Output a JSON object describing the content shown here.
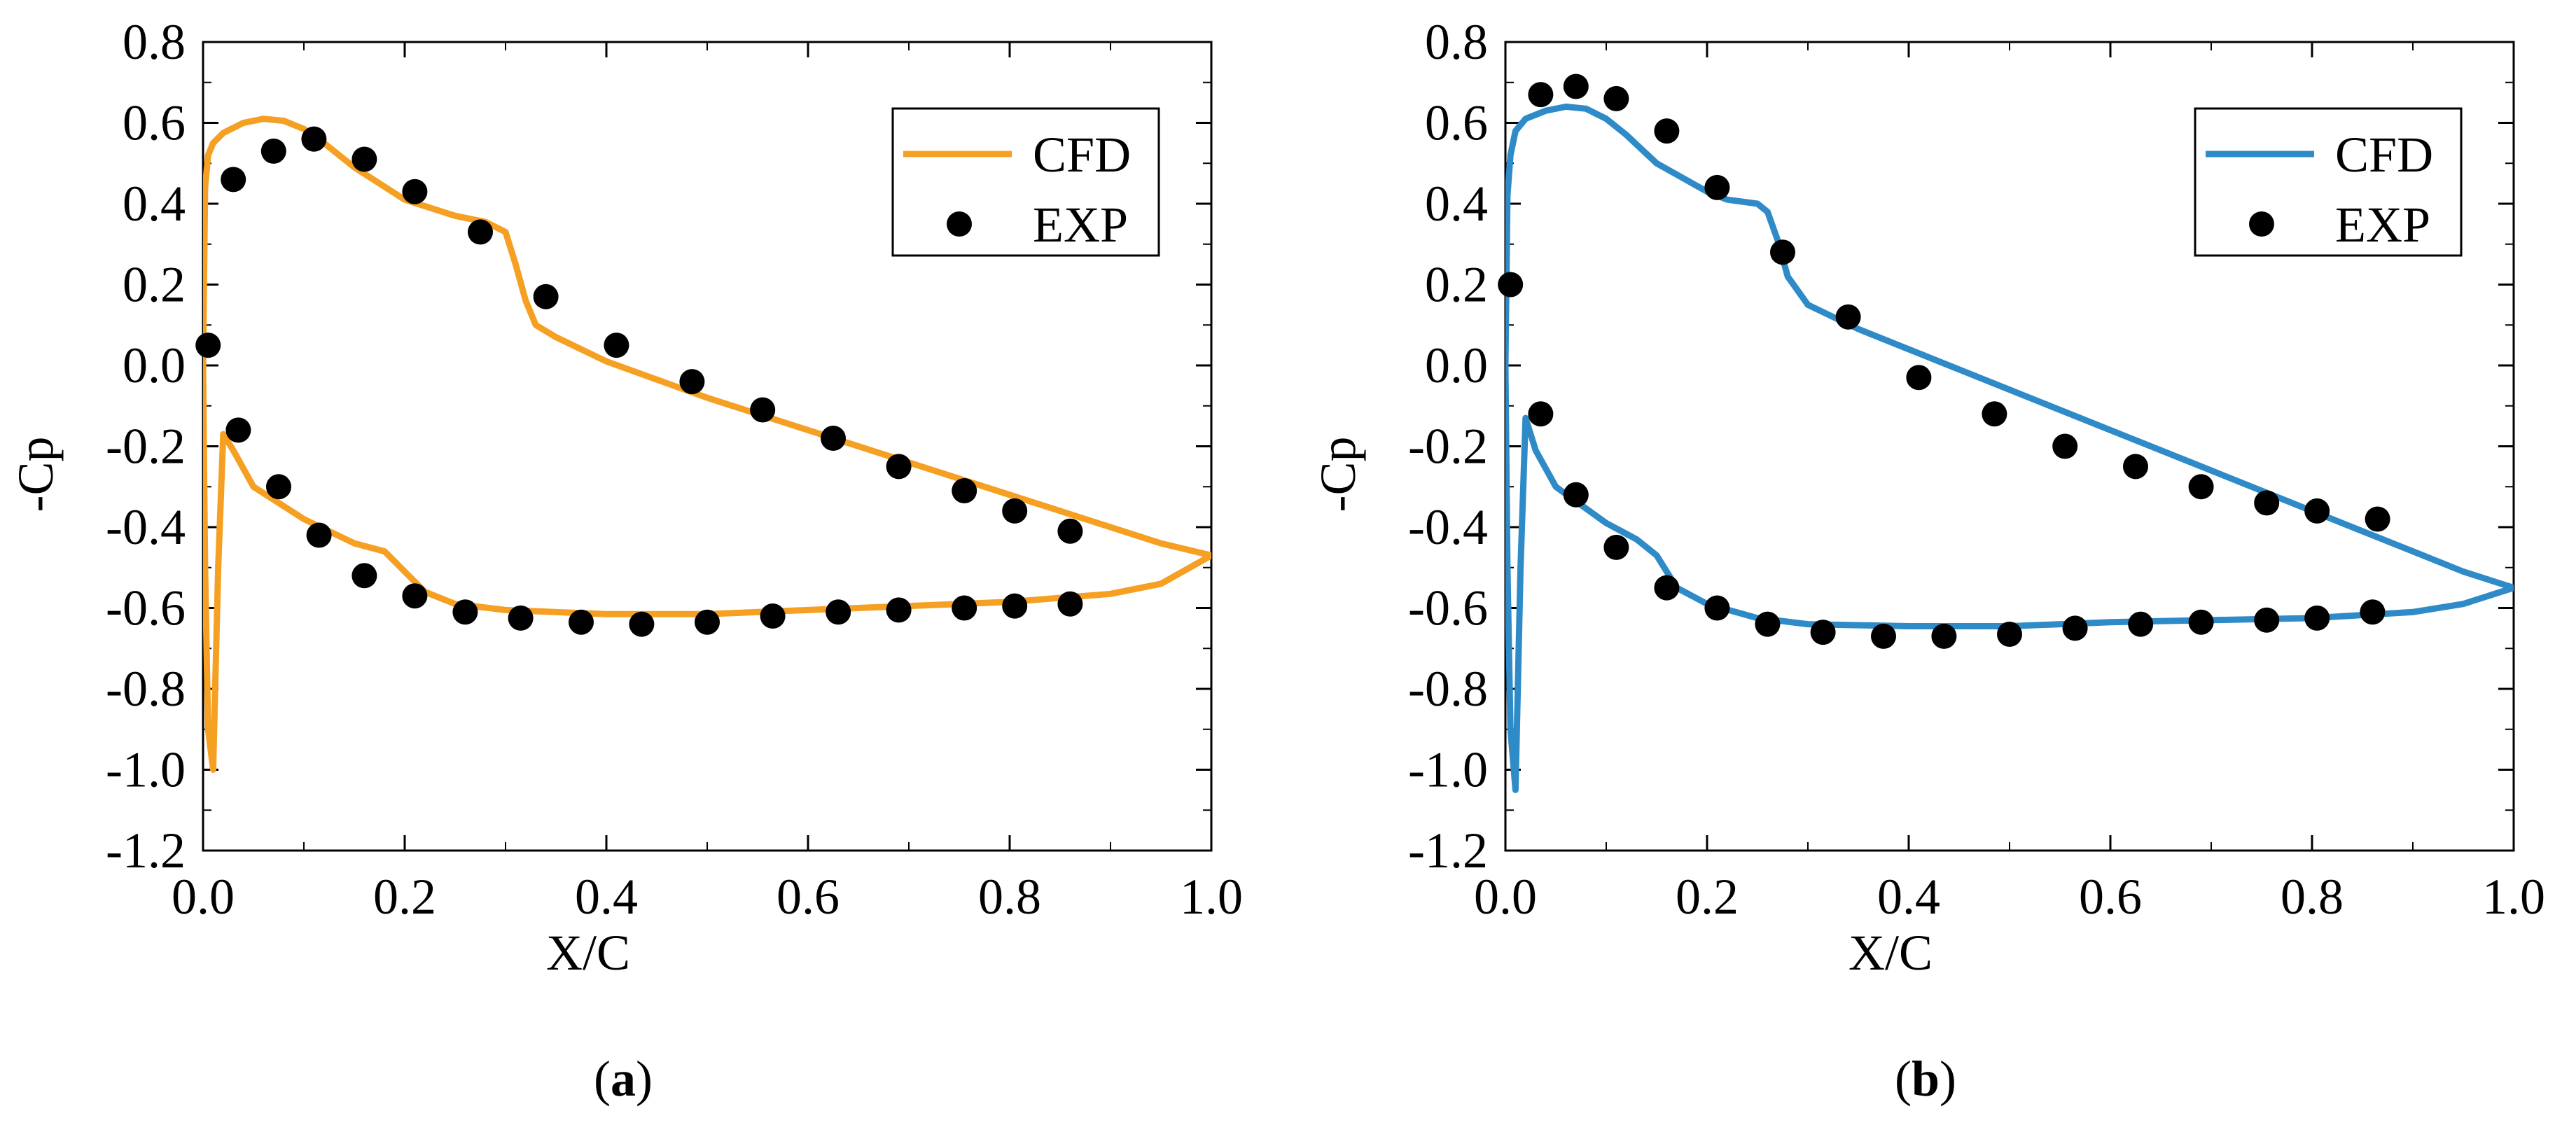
{
  "chart_data": [
    {
      "type": "line",
      "panel_label": "a",
      "xlabel": "X/C",
      "ylabel": "-Cp",
      "xlim": [
        0.0,
        1.0
      ],
      "ylim": [
        -1.2,
        0.8
      ],
      "xticks": [
        "0.0",
        "0.2",
        "0.4",
        "0.6",
        "0.8",
        "1.0"
      ],
      "yticks": [
        "0.8",
        "0.6",
        "0.4",
        "0.2",
        "0.0",
        "-0.2",
        "-0.4",
        "-0.6",
        "-0.8",
        "-1.0",
        "-1.2"
      ],
      "legend_position": "top-right",
      "series": [
        {
          "name": "CFD",
          "kind": "line",
          "color": "#F5A023",
          "x": [
            1.0,
            0.95,
            0.9,
            0.85,
            0.8,
            0.7,
            0.6,
            0.5,
            0.4,
            0.35,
            0.33,
            0.32,
            0.31,
            0.3,
            0.28,
            0.25,
            0.2,
            0.15,
            0.12,
            0.1,
            0.08,
            0.06,
            0.04,
            0.02,
            0.01,
            0.005,
            0.002,
            0.0,
            0.002,
            0.005,
            0.01,
            0.015,
            0.02,
            0.03,
            0.05,
            0.1,
            0.15,
            0.18,
            0.2,
            0.22,
            0.25,
            0.3,
            0.4,
            0.5,
            0.6,
            0.7,
            0.8,
            0.9,
            0.95,
            1.0
          ],
          "y": [
            -0.47,
            -0.44,
            -0.4,
            -0.36,
            -0.32,
            -0.24,
            -0.16,
            -0.08,
            0.01,
            0.07,
            0.1,
            0.16,
            0.25,
            0.33,
            0.355,
            0.37,
            0.41,
            0.49,
            0.55,
            0.585,
            0.605,
            0.61,
            0.6,
            0.575,
            0.55,
            0.52,
            0.44,
            0.0,
            -0.5,
            -0.9,
            -1.0,
            -0.5,
            -0.17,
            -0.21,
            -0.3,
            -0.38,
            -0.44,
            -0.46,
            -0.51,
            -0.56,
            -0.59,
            -0.605,
            -0.615,
            -0.615,
            -0.605,
            -0.595,
            -0.585,
            -0.565,
            -0.54,
            -0.47
          ]
        },
        {
          "name": "EXP",
          "kind": "scatter",
          "color": "#000000",
          "x": [
            0.005,
            0.03,
            0.07,
            0.11,
            0.16,
            0.21,
            0.275,
            0.34,
            0.41,
            0.485,
            0.555,
            0.625,
            0.69,
            0.755,
            0.805,
            0.86,
            0.035,
            0.075,
            0.115,
            0.16,
            0.21,
            0.26,
            0.315,
            0.375,
            0.435,
            0.5,
            0.565,
            0.63,
            0.69,
            0.755,
            0.805,
            0.86
          ],
          "y": [
            0.05,
            0.46,
            0.53,
            0.56,
            0.51,
            0.43,
            0.33,
            0.17,
            0.05,
            -0.04,
            -0.11,
            -0.18,
            -0.25,
            -0.31,
            -0.36,
            -0.41,
            -0.16,
            -0.3,
            -0.42,
            -0.52,
            -0.57,
            -0.61,
            -0.625,
            -0.635,
            -0.64,
            -0.635,
            -0.62,
            -0.61,
            -0.605,
            -0.6,
            -0.595,
            -0.59
          ]
        }
      ]
    },
    {
      "type": "line",
      "panel_label": "b",
      "xlabel": "X/C",
      "ylabel": "-Cp",
      "xlim": [
        0.0,
        1.0
      ],
      "ylim": [
        -1.2,
        0.8
      ],
      "xticks": [
        "0.0",
        "0.2",
        "0.4",
        "0.6",
        "0.8",
        "1.0"
      ],
      "yticks": [
        "0.8",
        "0.6",
        "0.4",
        "0.2",
        "0.0",
        "-0.2",
        "-0.4",
        "-0.6",
        "-0.8",
        "-1.0",
        "-1.2"
      ],
      "legend_position": "top-right",
      "series": [
        {
          "name": "CFD",
          "kind": "line",
          "color": "#2E8BC7",
          "x": [
            1.0,
            0.95,
            0.9,
            0.85,
            0.8,
            0.7,
            0.6,
            0.5,
            0.4,
            0.35,
            0.3,
            0.28,
            0.27,
            0.26,
            0.25,
            0.22,
            0.2,
            0.15,
            0.12,
            0.1,
            0.08,
            0.06,
            0.04,
            0.02,
            0.01,
            0.005,
            0.002,
            0.0,
            0.002,
            0.005,
            0.01,
            0.015,
            0.02,
            0.03,
            0.05,
            0.1,
            0.13,
            0.15,
            0.17,
            0.2,
            0.25,
            0.3,
            0.4,
            0.5,
            0.6,
            0.7,
            0.8,
            0.9,
            0.95,
            1.0
          ],
          "y": [
            -0.55,
            -0.51,
            -0.46,
            -0.41,
            -0.36,
            -0.26,
            -0.16,
            -0.06,
            0.04,
            0.09,
            0.15,
            0.22,
            0.31,
            0.38,
            0.4,
            0.41,
            0.43,
            0.5,
            0.57,
            0.61,
            0.635,
            0.64,
            0.63,
            0.61,
            0.58,
            0.52,
            0.42,
            0.0,
            -0.5,
            -0.9,
            -1.05,
            -0.5,
            -0.13,
            -0.21,
            -0.3,
            -0.39,
            -0.43,
            -0.47,
            -0.55,
            -0.59,
            -0.625,
            -0.64,
            -0.645,
            -0.645,
            -0.635,
            -0.63,
            -0.625,
            -0.61,
            -0.59,
            -0.55
          ]
        },
        {
          "name": "EXP",
          "kind": "scatter",
          "color": "#000000",
          "x": [
            0.005,
            0.035,
            0.07,
            0.11,
            0.16,
            0.21,
            0.275,
            0.34,
            0.41,
            0.485,
            0.555,
            0.625,
            0.69,
            0.755,
            0.805,
            0.865,
            0.035,
            0.07,
            0.11,
            0.16,
            0.21,
            0.26,
            0.315,
            0.375,
            0.435,
            0.5,
            0.565,
            0.63,
            0.69,
            0.755,
            0.805,
            0.86
          ],
          "y": [
            0.2,
            0.67,
            0.69,
            0.66,
            0.58,
            0.44,
            0.28,
            0.12,
            -0.03,
            -0.12,
            -0.2,
            -0.25,
            -0.3,
            -0.34,
            -0.36,
            -0.38,
            -0.12,
            -0.32,
            -0.45,
            -0.55,
            -0.6,
            -0.64,
            -0.66,
            -0.67,
            -0.67,
            -0.665,
            -0.65,
            -0.64,
            -0.635,
            -0.63,
            -0.625,
            -0.61
          ]
        }
      ]
    }
  ]
}
